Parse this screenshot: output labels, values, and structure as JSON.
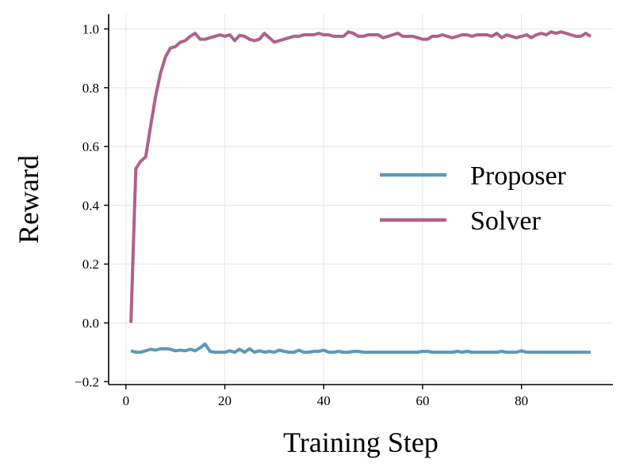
{
  "chart_data": {
    "type": "line",
    "title": "",
    "xlabel": "Training Step",
    "ylabel": "Reward",
    "xlim": [
      -3.5,
      98.5
    ],
    "ylim": [
      -0.21,
      1.05
    ],
    "xticks": [
      0,
      20,
      40,
      60,
      80
    ],
    "yticks": [
      -0.2,
      0.0,
      0.2,
      0.4,
      0.6,
      0.8,
      1.0
    ],
    "xtick_labels": [
      "0",
      "20",
      "40",
      "60",
      "80"
    ],
    "ytick_labels": [
      "−0.2",
      "0.0",
      "0.2",
      "0.4",
      "0.6",
      "0.8",
      "1.0"
    ],
    "grid": true,
    "legend_position": "center-right",
    "series": [
      {
        "name": "Proposer",
        "color": "#5b9ab7",
        "x": [
          1,
          2,
          3,
          4,
          5,
          6,
          7,
          8,
          9,
          10,
          11,
          12,
          13,
          14,
          15,
          16,
          17,
          18,
          19,
          20,
          21,
          22,
          23,
          24,
          25,
          26,
          27,
          28,
          29,
          30,
          31,
          32,
          33,
          34,
          35,
          36,
          37,
          38,
          39,
          40,
          41,
          42,
          43,
          44,
          45,
          46,
          47,
          48,
          49,
          50,
          51,
          52,
          53,
          54,
          55,
          56,
          57,
          58,
          59,
          60,
          61,
          62,
          63,
          64,
          65,
          66,
          67,
          68,
          69,
          70,
          71,
          72,
          73,
          74,
          75,
          76,
          77,
          78,
          79,
          80,
          81,
          82,
          83,
          84,
          85,
          86,
          87,
          88,
          89,
          90,
          91,
          92,
          93,
          94
        ],
        "y": [
          -0.095,
          -0.1,
          -0.1,
          -0.095,
          -0.09,
          -0.093,
          -0.088,
          -0.088,
          -0.09,
          -0.095,
          -0.093,
          -0.095,
          -0.09,
          -0.095,
          -0.085,
          -0.072,
          -0.097,
          -0.1,
          -0.1,
          -0.1,
          -0.095,
          -0.1,
          -0.09,
          -0.1,
          -0.088,
          -0.1,
          -0.095,
          -0.1,
          -0.097,
          -0.1,
          -0.093,
          -0.097,
          -0.1,
          -0.1,
          -0.093,
          -0.1,
          -0.1,
          -0.097,
          -0.097,
          -0.093,
          -0.1,
          -0.1,
          -0.097,
          -0.1,
          -0.1,
          -0.097,
          -0.097,
          -0.1,
          -0.1,
          -0.1,
          -0.1,
          -0.1,
          -0.1,
          -0.1,
          -0.1,
          -0.1,
          -0.1,
          -0.1,
          -0.1,
          -0.097,
          -0.097,
          -0.1,
          -0.1,
          -0.1,
          -0.1,
          -0.1,
          -0.097,
          -0.1,
          -0.097,
          -0.1,
          -0.1,
          -0.1,
          -0.1,
          -0.1,
          -0.1,
          -0.097,
          -0.1,
          -0.1,
          -0.1,
          -0.095,
          -0.1,
          -0.1,
          -0.1,
          -0.1,
          -0.1,
          -0.1,
          -0.1,
          -0.1,
          -0.1,
          -0.1,
          -0.1,
          -0.1,
          -0.1,
          -0.1
        ]
      },
      {
        "name": "Solver",
        "color": "#b0608c",
        "x": [
          1,
          2,
          3,
          4,
          5,
          6,
          7,
          8,
          9,
          10,
          11,
          12,
          13,
          14,
          15,
          16,
          17,
          18,
          19,
          20,
          21,
          22,
          23,
          24,
          25,
          26,
          27,
          28,
          29,
          30,
          31,
          32,
          33,
          34,
          35,
          36,
          37,
          38,
          39,
          40,
          41,
          42,
          43,
          44,
          45,
          46,
          47,
          48,
          49,
          50,
          51,
          52,
          53,
          54,
          55,
          56,
          57,
          58,
          59,
          60,
          61,
          62,
          63,
          64,
          65,
          66,
          67,
          68,
          69,
          70,
          71,
          72,
          73,
          74,
          75,
          76,
          77,
          78,
          79,
          80,
          81,
          82,
          83,
          84,
          85,
          86,
          87,
          88,
          89,
          90,
          91,
          92,
          93,
          94
        ],
        "y": [
          0.0,
          0.525,
          0.55,
          0.565,
          0.67,
          0.77,
          0.85,
          0.905,
          0.935,
          0.94,
          0.955,
          0.96,
          0.975,
          0.985,
          0.965,
          0.965,
          0.97,
          0.975,
          0.98,
          0.975,
          0.98,
          0.96,
          0.978,
          0.975,
          0.965,
          0.96,
          0.965,
          0.985,
          0.97,
          0.955,
          0.96,
          0.965,
          0.97,
          0.975,
          0.975,
          0.98,
          0.98,
          0.98,
          0.985,
          0.98,
          0.98,
          0.975,
          0.975,
          0.975,
          0.99,
          0.985,
          0.975,
          0.975,
          0.98,
          0.98,
          0.98,
          0.97,
          0.975,
          0.98,
          0.985,
          0.975,
          0.975,
          0.975,
          0.97,
          0.965,
          0.965,
          0.975,
          0.975,
          0.98,
          0.975,
          0.97,
          0.975,
          0.98,
          0.98,
          0.975,
          0.98,
          0.98,
          0.98,
          0.975,
          0.985,
          0.97,
          0.98,
          0.975,
          0.97,
          0.975,
          0.98,
          0.97,
          0.98,
          0.985,
          0.98,
          0.99,
          0.985,
          0.99,
          0.985,
          0.98,
          0.975,
          0.975,
          0.985,
          0.975
        ]
      }
    ]
  }
}
